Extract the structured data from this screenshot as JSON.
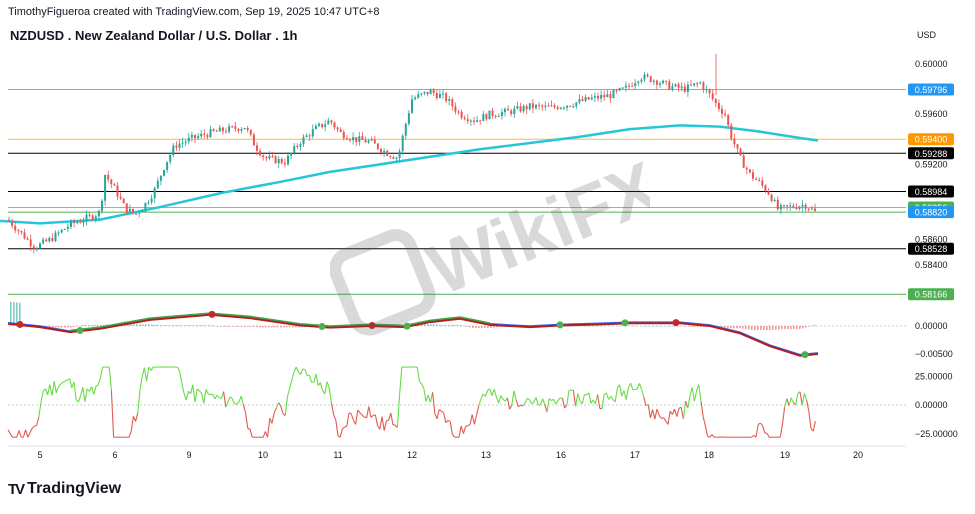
{
  "header": {
    "credit": "TimothyFigueroa created with TradingView.com, Sep 19, 2025 10:47 UTC+8",
    "title": "NZDUSD . New Zealand Dollar / U.S. Dollar . 1h",
    "currency": "USD"
  },
  "footer": {
    "brand": "TradingView",
    "logo": "TV"
  },
  "watermark": {
    "text": "WikiFX"
  },
  "chart_data": {
    "type": "candlestick",
    "symbol": "NZDUSD",
    "interval": "1h",
    "x_tick_labels": [
      "5",
      "6",
      "9",
      "10",
      "11",
      "12",
      "13",
      "16",
      "17",
      "18",
      "19",
      "20"
    ],
    "price_axis": {
      "ticks": [
        "0.60000",
        "0.59600",
        "0.59200",
        "0.58600",
        "0.58400"
      ],
      "ylim": [
        0.5812,
        0.6015
      ]
    },
    "price_levels": [
      {
        "label": "0.59796",
        "value": 0.59796,
        "color": "#2196f3",
        "line_color": "#64b5f6"
      },
      {
        "label": "0.59400",
        "value": 0.594,
        "color": "#ff9800",
        "line_color": "#ffb74d"
      },
      {
        "label": "0.59288",
        "value": 0.59288,
        "color": "#000000",
        "line_color": "#000000"
      },
      {
        "label": "0.58984",
        "value": 0.58984,
        "color": "#000000",
        "line_color": "#000000"
      },
      {
        "label": "0.58856",
        "value": 0.58856,
        "color": "#4caf50",
        "line_color": "#81c784"
      },
      {
        "label": "0.58820",
        "value": 0.5882,
        "color": "#2196f3",
        "line_color": "#4caf50"
      },
      {
        "label": "0.58528",
        "value": 0.58528,
        "color": "#000000",
        "line_color": "#000000"
      },
      {
        "label": "0.58166",
        "value": 0.58166,
        "color": "#4caf50",
        "line_color": "#4caf50"
      }
    ],
    "moving_average": {
      "color": "#26c6da",
      "points": [
        [
          0,
          0.5875
        ],
        [
          40,
          0.5873
        ],
        [
          100,
          0.5876
        ],
        [
          160,
          0.5886
        ],
        [
          220,
          0.5897
        ],
        [
          280,
          0.5906
        ],
        [
          330,
          0.5914
        ],
        [
          380,
          0.592
        ],
        [
          430,
          0.5926
        ],
        [
          480,
          0.5932
        ],
        [
          530,
          0.5937
        ],
        [
          580,
          0.5942
        ],
        [
          630,
          0.5948
        ],
        [
          680,
          0.5951
        ],
        [
          720,
          0.595
        ],
        [
          760,
          0.5946
        ],
        [
          800,
          0.5941
        ],
        [
          818,
          0.5939
        ]
      ]
    },
    "price_path": [
      [
        8,
        0.5876
      ],
      [
        25,
        0.5862
      ],
      [
        35,
        0.5854
      ],
      [
        50,
        0.586
      ],
      [
        70,
        0.5872
      ],
      [
        90,
        0.5878
      ],
      [
        100,
        0.5882
      ],
      [
        105,
        0.5912
      ],
      [
        115,
        0.59
      ],
      [
        125,
        0.5885
      ],
      [
        135,
        0.588
      ],
      [
        145,
        0.5888
      ],
      [
        155,
        0.59
      ],
      [
        165,
        0.592
      ],
      [
        175,
        0.5935
      ],
      [
        190,
        0.594
      ],
      [
        210,
        0.5945
      ],
      [
        230,
        0.5948
      ],
      [
        245,
        0.595
      ],
      [
        255,
        0.5935
      ],
      [
        265,
        0.5925
      ],
      [
        285,
        0.5922
      ],
      [
        300,
        0.5938
      ],
      [
        315,
        0.5948
      ],
      [
        330,
        0.5955
      ],
      [
        340,
        0.5945
      ],
      [
        355,
        0.594
      ],
      [
        370,
        0.5938
      ],
      [
        385,
        0.593
      ],
      [
        398,
        0.5925
      ],
      [
        405,
        0.595
      ],
      [
        412,
        0.5972
      ],
      [
        430,
        0.5978
      ],
      [
        445,
        0.5973
      ],
      [
        460,
        0.596
      ],
      [
        475,
        0.5955
      ],
      [
        490,
        0.596
      ],
      [
        510,
        0.5962
      ],
      [
        530,
        0.5966
      ],
      [
        550,
        0.5965
      ],
      [
        570,
        0.5968
      ],
      [
        590,
        0.5972
      ],
      [
        610,
        0.5975
      ],
      [
        625,
        0.598
      ],
      [
        640,
        0.599
      ],
      [
        655,
        0.5987
      ],
      [
        670,
        0.5982
      ],
      [
        685,
        0.598
      ],
      [
        700,
        0.5985
      ],
      [
        710,
        0.5975
      ],
      [
        718,
        0.5966
      ],
      [
        725,
        0.596
      ],
      [
        730,
        0.5945
      ],
      [
        740,
        0.5925
      ],
      [
        750,
        0.5912
      ],
      [
        760,
        0.5905
      ],
      [
        770,
        0.5896
      ],
      [
        778,
        0.5884
      ],
      [
        790,
        0.5886
      ],
      [
        805,
        0.5888
      ],
      [
        815,
        0.5882
      ]
    ],
    "macd": {
      "axis_ticks": [
        "0.00000",
        "−0.00500"
      ],
      "macd_color": "#2962ff",
      "signal_color": "#b71c1c",
      "points": [
        [
          8,
          0.0005
        ],
        [
          40,
          -0.0001
        ],
        [
          70,
          -0.001
        ],
        [
          100,
          -0.0004
        ],
        [
          150,
          0.0012
        ],
        [
          210,
          0.0021
        ],
        [
          250,
          0.0015
        ],
        [
          300,
          0.0002
        ],
        [
          330,
          -0.0002
        ],
        [
          370,
          0.0001
        ],
        [
          405,
          -0.0001
        ],
        [
          430,
          0.0008
        ],
        [
          460,
          0.0014
        ],
        [
          490,
          0.0003
        ],
        [
          530,
          -0.0001
        ],
        [
          560,
          0.0002
        ],
        [
          600,
          0.0004
        ],
        [
          630,
          0.0006
        ],
        [
          680,
          0.0006
        ],
        [
          710,
          0.0001
        ],
        [
          740,
          -0.0012
        ],
        [
          770,
          -0.0035
        ],
        [
          800,
          -0.0052
        ],
        [
          818,
          -0.0049
        ]
      ],
      "cross_points_green": [
        80,
        322,
        407,
        560,
        625,
        805
      ],
      "cross_points_red": [
        20,
        212,
        372,
        676
      ]
    },
    "oscillator": {
      "axis_ticks": [
        "25.00000",
        "0.00000",
        "−25.00000"
      ],
      "ylim": [
        -30,
        35
      ],
      "up_color": "#66dd44",
      "down_color": "#e05a50"
    }
  }
}
